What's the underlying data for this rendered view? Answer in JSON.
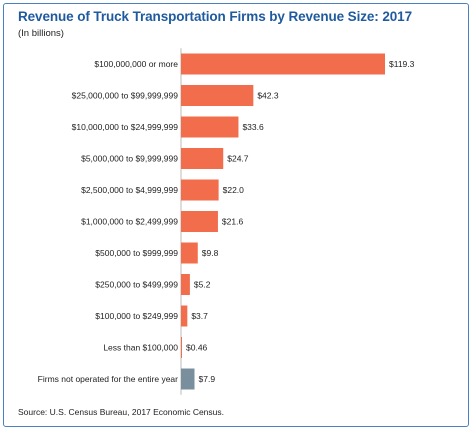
{
  "chart_data": {
    "type": "bar",
    "orientation": "horizontal",
    "title": "Revenue of Truck Transportation Firms by Revenue Size: 2017",
    "subtitle": "(In billions)",
    "categories": [
      "$100,000,000 or more",
      "$25,000,000 to $99,999,999",
      "$10,000,000 to $24,999,999",
      "$5,000,000 to $9,999,999",
      "$2,500,000 to $4,999,999",
      "$1,000,000 to $2,499,999",
      "$500,000 to $999,999",
      "$250,000 to $499,999",
      "$100,000 to $249,999",
      "Less than $100,000",
      "Firms not operated for the entire year"
    ],
    "values": [
      119.3,
      42.3,
      33.6,
      24.7,
      22.0,
      21.6,
      9.8,
      5.2,
      3.7,
      0.46,
      7.9
    ],
    "value_labels": [
      "$119.3",
      "$42.3",
      "$33.6",
      "$24.7",
      "$22.0",
      "$21.6",
      "$9.8",
      "$5.2",
      "$3.7",
      "$0.46",
      "$7.9"
    ],
    "bar_colors": [
      "#f26d4b",
      "#f26d4b",
      "#f26d4b",
      "#f26d4b",
      "#f26d4b",
      "#f26d4b",
      "#f26d4b",
      "#f26d4b",
      "#f26d4b",
      "#f26d4b",
      "#7a8f9e"
    ],
    "xlim": [
      0,
      119.3
    ],
    "grid": false,
    "legend": "none"
  },
  "source": "Source: U.S. Census Bureau, 2017 Economic Census.",
  "colors": {
    "title": "#1f5a9e",
    "border": "#4a7fc1",
    "axis": "#bbbbbb"
  }
}
